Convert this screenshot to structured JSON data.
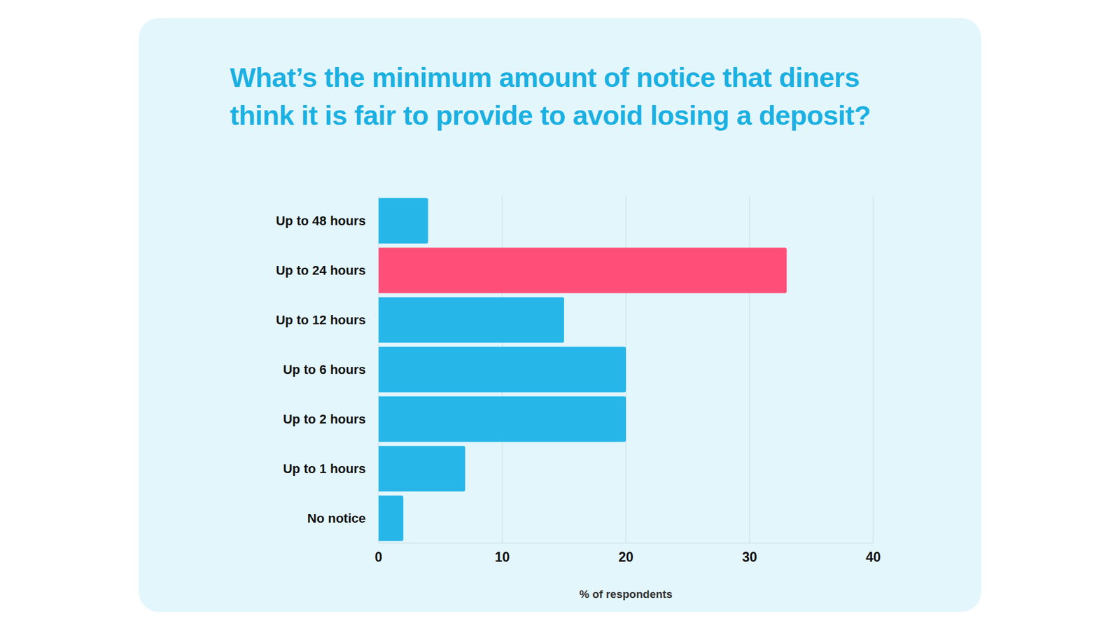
{
  "chart_data": {
    "type": "bar",
    "title": "What’s the minimum amount of notice that diners think it is fair to provide to avoid losing a deposit?",
    "categories": [
      "Up to 48 hours",
      "Up to 24 hours",
      "Up to 12 hours",
      "Up to 6 hours",
      "Up to 2 hours",
      "Up to 1 hours",
      "No notice"
    ],
    "values": [
      4,
      33,
      15,
      20,
      20,
      7,
      2
    ],
    "colors": [
      "#27b6e8",
      "#ff4f79",
      "#27b6e8",
      "#27b6e8",
      "#27b6e8",
      "#27b6e8",
      "#27b6e8"
    ],
    "xlabel": "% of respondents",
    "xlim": [
      0,
      40
    ],
    "xticks": [
      0,
      10,
      20,
      30,
      40
    ],
    "orientation": "horizontal",
    "grid": true
  }
}
